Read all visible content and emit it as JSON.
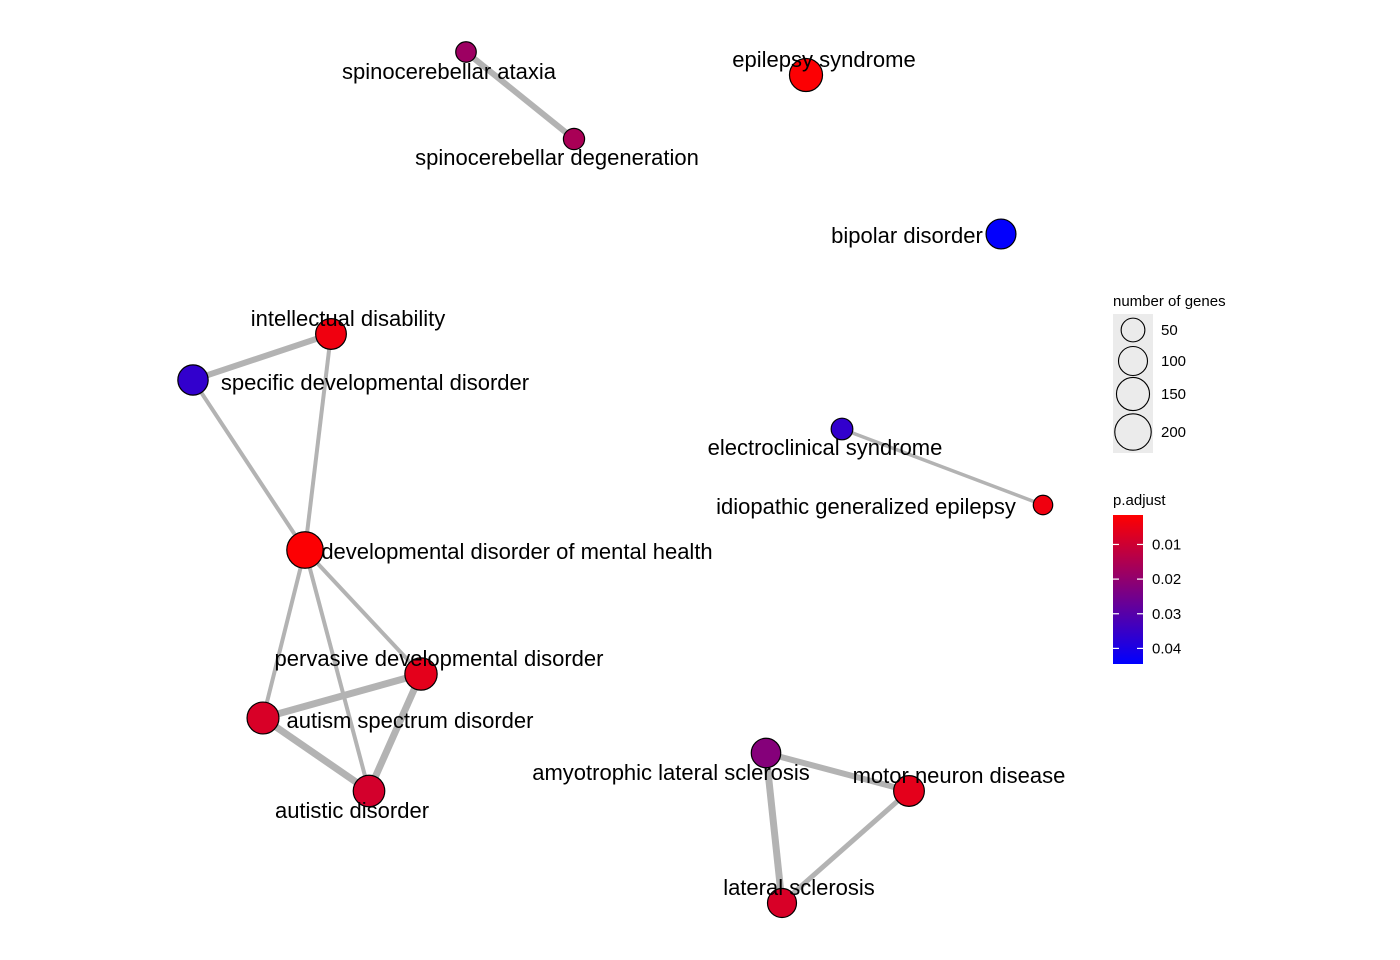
{
  "network": {
    "nodes": [
      {
        "id": "sca",
        "label": "spinocerebellar ataxia",
        "genes": 28,
        "p_adjust": 0.018
      },
      {
        "id": "scd",
        "label": "spinocerebellar degeneration",
        "genes": 32,
        "p_adjust": 0.016
      },
      {
        "id": "eps",
        "label": "epilepsy syndrome",
        "genes": 150,
        "p_adjust": 0.002
      },
      {
        "id": "bip",
        "label": "bipolar disorder",
        "genes": 110,
        "p_adjust": 0.044
      },
      {
        "id": "int",
        "label": "intellectual disability",
        "genes": 120,
        "p_adjust": 0.004
      },
      {
        "id": "sdd",
        "label": "specific developmental disorder",
        "genes": 115,
        "p_adjust": 0.036
      },
      {
        "id": "ecs",
        "label": "electroclinical syndrome",
        "genes": 35,
        "p_adjust": 0.036
      },
      {
        "id": "ige",
        "label": "idiopathic generalized epilepsy",
        "genes": 22,
        "p_adjust": 0.004
      },
      {
        "id": "ddm",
        "label": "developmental disorder of mental health",
        "genes": 200,
        "p_adjust": 0.002
      },
      {
        "id": "pdd",
        "label": "pervasive developmental disorder",
        "genes": 140,
        "p_adjust": 0.006
      },
      {
        "id": "asd",
        "label": "autism spectrum disorder",
        "genes": 135,
        "p_adjust": 0.008
      },
      {
        "id": "aut",
        "label": "autistic disorder",
        "genes": 130,
        "p_adjust": 0.009
      },
      {
        "id": "als",
        "label": "amyotrophic lateral sclerosis",
        "genes": 105,
        "p_adjust": 0.022
      },
      {
        "id": "mnd",
        "label": "motor neuron disease",
        "genes": 120,
        "p_adjust": 0.006
      },
      {
        "id": "lsc",
        "label": "lateral sclerosis",
        "genes": 100,
        "p_adjust": 0.008
      }
    ],
    "edges": [
      {
        "source": "sca",
        "target": "scd"
      },
      {
        "source": "ecs",
        "target": "ige"
      },
      {
        "source": "int",
        "target": "sdd"
      },
      {
        "source": "int",
        "target": "ddm"
      },
      {
        "source": "sdd",
        "target": "ddm"
      },
      {
        "source": "ddm",
        "target": "asd"
      },
      {
        "source": "ddm",
        "target": "pdd"
      },
      {
        "source": "ddm",
        "target": "aut"
      },
      {
        "source": "asd",
        "target": "pdd"
      },
      {
        "source": "asd",
        "target": "aut"
      },
      {
        "source": "pdd",
        "target": "aut"
      },
      {
        "source": "als",
        "target": "mnd"
      },
      {
        "source": "als",
        "target": "lsc"
      },
      {
        "source": "mnd",
        "target": "lsc"
      }
    ]
  },
  "legend": {
    "size_title": "number of genes",
    "size_items": [
      {
        "label": "50",
        "value": 50
      },
      {
        "label": "100",
        "value": 100
      },
      {
        "label": "150",
        "value": 150
      },
      {
        "label": "200",
        "value": 200
      }
    ],
    "color_title": "p.adjust",
    "color_ticks": [
      {
        "label": "0.01",
        "value": 0.01
      },
      {
        "label": "0.02",
        "value": 0.02
      },
      {
        "label": "0.03",
        "value": 0.03
      },
      {
        "label": "0.04",
        "value": 0.04
      }
    ],
    "color_low": "#FF0000",
    "color_high": "#0000FF",
    "p_range": [
      0.0015,
      0.0445
    ]
  },
  "colors": {
    "edge": "#B3B3B3",
    "node_stroke": "#000000",
    "legend_bg": "#EBEBEB"
  }
}
